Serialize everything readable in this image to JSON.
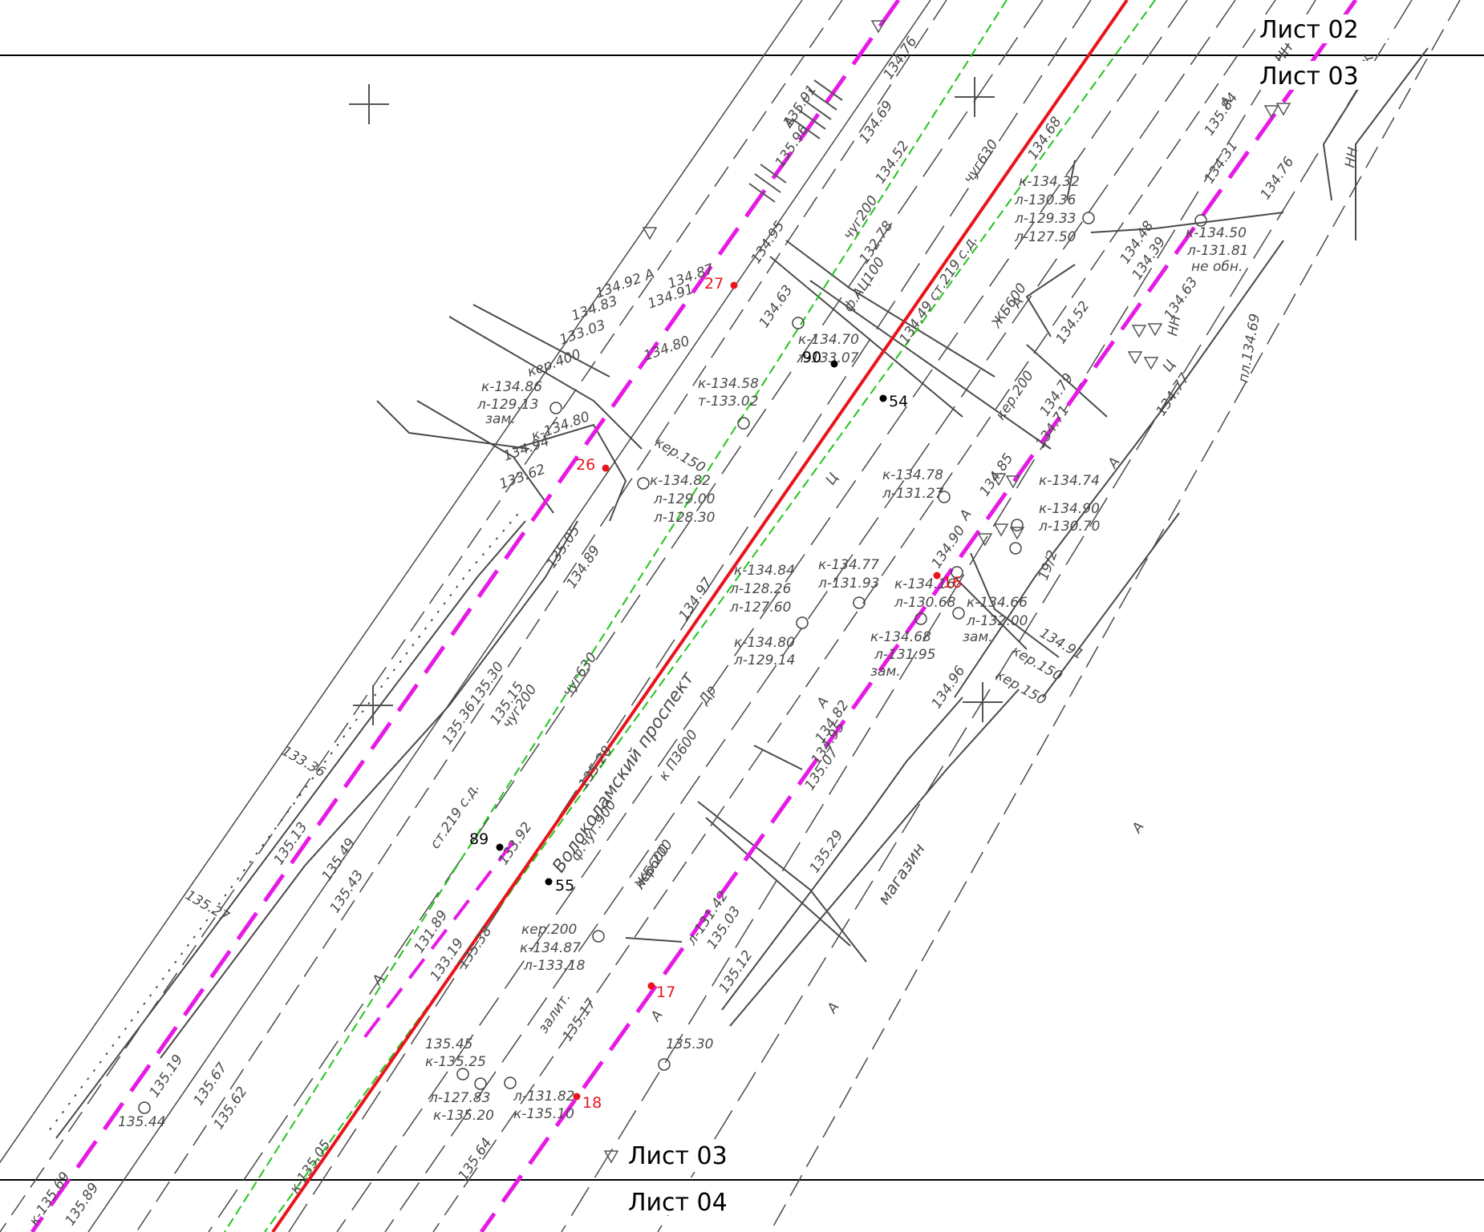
{
  "sheets": {
    "l02": "Лист 02",
    "l03_top": "Лист 03",
    "l03_bottom": "Лист 03",
    "l04": "Лист 04"
  },
  "street_name": "Волоколамский проспект",
  "building_label": "магазин",
  "colors": {
    "background": "#ffffff",
    "linework": "#4a4a4a",
    "main_pipe": "#e8141b",
    "designed_route": "#e619e6",
    "dashed_green": "#22c41a",
    "point_red": "#e8141b",
    "point_black": "#000000"
  },
  "points": [
    {
      "id": "p27",
      "label": "27",
      "type": "red"
    },
    {
      "id": "p26",
      "label": "26",
      "type": "red"
    },
    {
      "id": "p16",
      "label": "16",
      "type": "red"
    },
    {
      "id": "p17",
      "label": "17",
      "type": "red"
    },
    {
      "id": "p18",
      "label": "18",
      "type": "red"
    },
    {
      "id": "p90",
      "label": "90",
      "type": "black"
    },
    {
      "id": "p54",
      "label": "54",
      "type": "black"
    },
    {
      "id": "p89",
      "label": "89",
      "type": "black"
    },
    {
      "id": "p55",
      "label": "55",
      "type": "black"
    }
  ],
  "labels": [
    "135.91",
    "135.96",
    "134.76",
    "134.69",
    "134.52",
    "134.68",
    "134.87",
    "134.91",
    "134.92 А",
    "134.95",
    "132.78",
    "134.63",
    "134.83",
    "133.03",
    "134.80",
    "чуг630",
    "чуг200",
    "ф.АЦ100",
    "134.49 ст.219 с.д.",
    "ЖБ600",
    "кер.200",
    "кер.400",
    "кер.150",
    "кер.150",
    "кер.150",
    "кер.200",
    "к-134.32",
    "л-130.36",
    "л-129.33",
    "л-127.50",
    "к-134.50",
    "л-131.81",
    "не обн.",
    "к-134.86",
    "л-129.13",
    "зам.",
    "к-134.80",
    "134.94",
    "133.62",
    "к-134.58",
    "т-133.02",
    "к-134.70",
    "т-133.07",
    "к-134.82",
    "л-129.00",
    "л-128.30",
    "к-134.78",
    "л-131.27",
    "к-134.74",
    "к-134.90",
    "л-130.70",
    "134.85",
    "134.71",
    "134.79",
    "134.90",
    "к-134.84",
    "л-128.26",
    "л-127.60",
    "к-134.77",
    "л-131.93",
    "к-134.80",
    "л-129.14",
    "к-134.16",
    "л-130.68",
    "к-134.66",
    "л-132.00",
    "зам.",
    "к-134.68",
    "л-131.95",
    "зам.",
    "134.91",
    "19/2",
    "135.05",
    "134.89",
    "134.97",
    "135.30",
    "135.15",
    "135.36",
    "133.36",
    "135.28",
    "чуг200",
    "чуг630",
    "к П3600",
    "Др",
    "134.82",
    "134.95",
    "135.07",
    "134.96",
    "135.13",
    "135.49",
    "135.43",
    "135.27",
    "131.89",
    "133.19",
    "135.38",
    "133.92",
    "ст.219 с.д.",
    "ф.чуг.900",
    "ЖБ600",
    "кер.200",
    "к-134.87",
    "л-133.18",
    "л-131.42",
    "135.03",
    "135.12",
    "135.29",
    "135.19",
    "135.67",
    "135.62",
    "135.45",
    "к-135.25",
    "л-127.83",
    "к-135.20",
    "л-131.82",
    "к-135.10",
    "залит.",
    "135.17",
    "135.30",
    "к-135.05",
    "135.64",
    "135.44",
    "к-135.69",
    "135.89",
    "135.84",
    "134.31",
    "134.48",
    "134.39",
    "134.52",
    "134.63",
    "134.77",
    "134.76",
    "пл.134.69",
    "5КЖ",
    "НН",
    "НН",
    "НН",
    "Ц",
    "Ц",
    "А",
    "А",
    "А",
    "А",
    "А",
    "А",
    "А",
    "А",
    "А",
    "А"
  ]
}
